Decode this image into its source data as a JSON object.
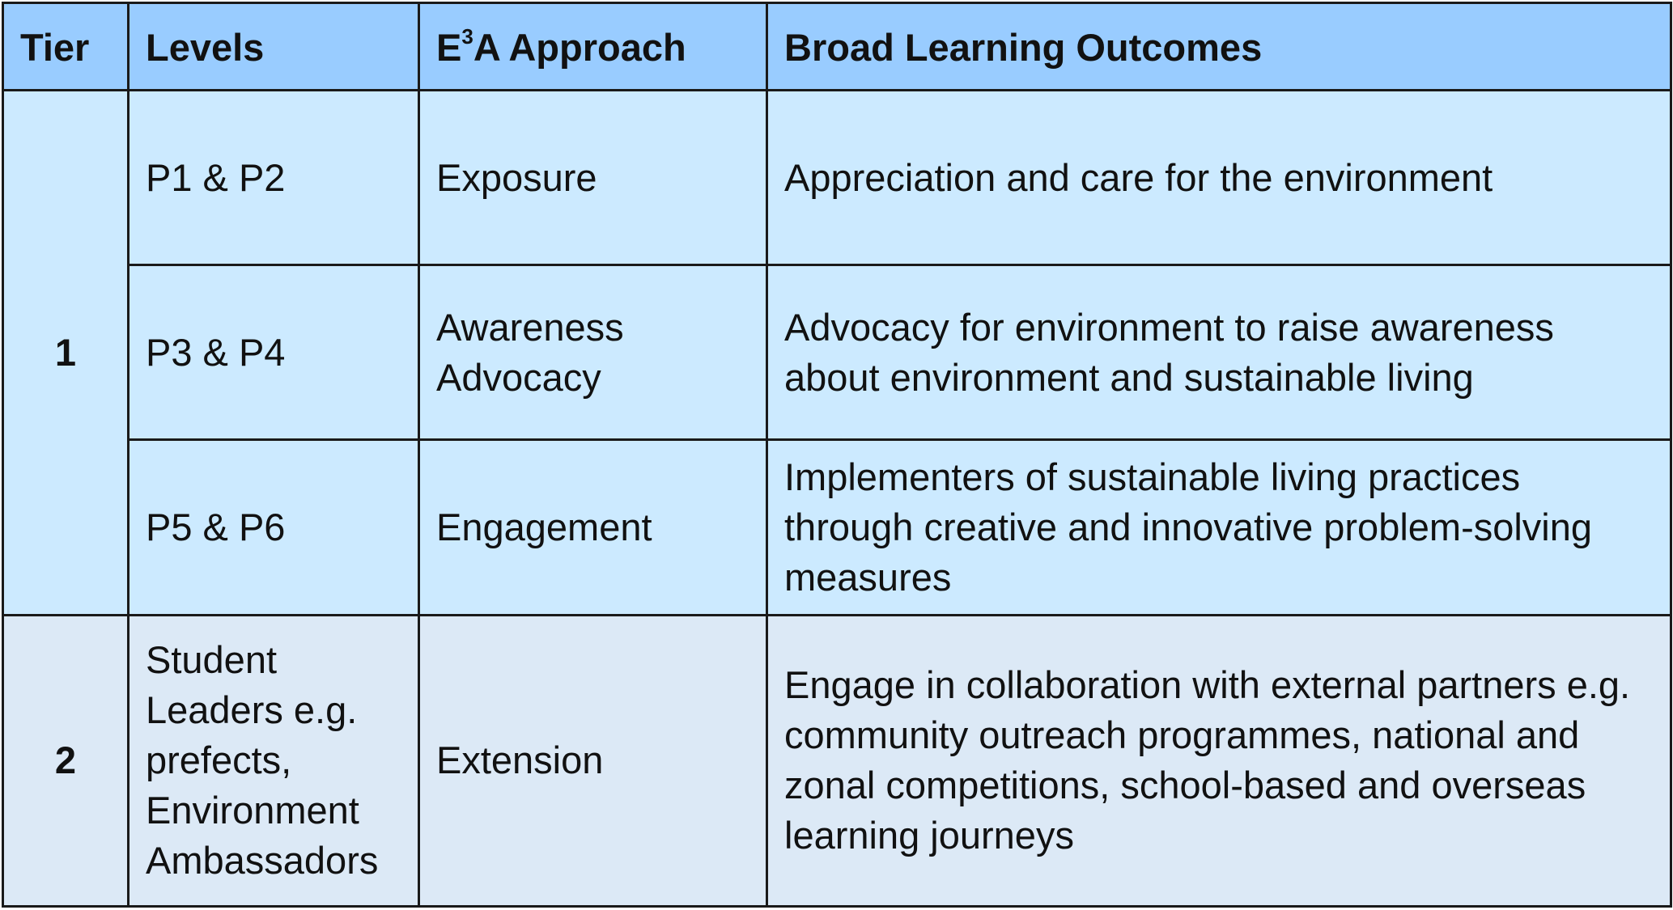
{
  "table": {
    "headers": {
      "tier": "Tier",
      "levels": "Levels",
      "approach_prefix": "E",
      "approach_sup": "3",
      "approach_suffix": "A Approach",
      "outcomes": "Broad Learning Outcomes"
    },
    "tier1": {
      "label": "1",
      "rows": [
        {
          "levels": "P1 & P2",
          "approach": [
            "Exposure"
          ],
          "outcomes": "Appreciation and care for the environment"
        },
        {
          "levels": "P3 & P4",
          "approach": [
            "Awareness",
            "Advocacy"
          ],
          "outcomes": "Advocacy for environment to raise awareness about environment and sustainable living"
        },
        {
          "levels": "P5 & P6",
          "approach": [
            "Engagement"
          ],
          "outcomes": "Implementers of sustainable living practices through creative and innovative problem-solving measures"
        }
      ]
    },
    "tier2": {
      "label": "2",
      "rows": [
        {
          "levels": "Student Leaders e.g. prefects, Environment Ambassadors",
          "approach": [
            "Extension"
          ],
          "outcomes": "Engage in collaboration with external partners e.g. community outreach programmes, national and zonal competitions, school-based and overseas learning journeys"
        }
      ]
    }
  },
  "colors": {
    "header_bg": "#99ccff",
    "tier1_bg": "#cceaff",
    "tier2_bg": "#dce9f6",
    "border": "#1a1a1a"
  }
}
